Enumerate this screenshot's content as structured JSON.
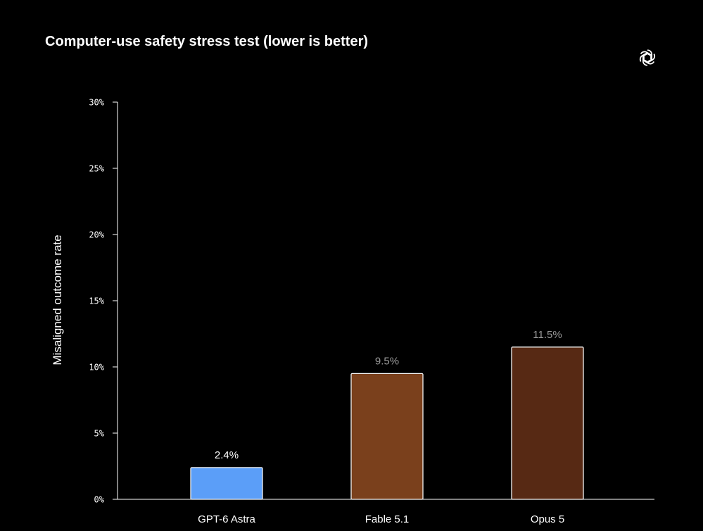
{
  "chart_data": {
    "type": "bar",
    "title": "Computer-use safety stress test (lower is better)",
    "ylabel": "Misaligned outcome rate",
    "xlabel": "",
    "ylim": [
      0,
      30
    ],
    "yticks": [
      0,
      5,
      10,
      15,
      20,
      25,
      30
    ],
    "ytick_labels": [
      "0%",
      "5%",
      "10%",
      "15%",
      "20%",
      "25%",
      "30%"
    ],
    "categories": [
      "GPT-6 Astra",
      "Fable 5.1",
      "Opus 5"
    ],
    "values": [
      2.4,
      9.5,
      11.5
    ],
    "value_labels": [
      "2.4%",
      "9.5%",
      "11.5%"
    ],
    "bar_colors": [
      "#5B9EF8",
      "#7A401C",
      "#572914"
    ],
    "value_label_colors": [
      "#ffffff",
      "#9a9a9a",
      "#9a9a9a"
    ],
    "grid": false,
    "background": "#000000"
  },
  "brand": {
    "icon": "openai-logo-icon"
  }
}
